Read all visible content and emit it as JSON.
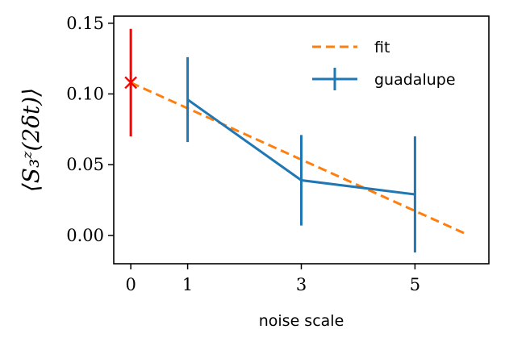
{
  "chart_data": {
    "type": "line",
    "title": "",
    "xlabel": "noise scale",
    "ylabel": "⟨S₃ᶻ(2δt)⟩",
    "xlim": [
      -0.3,
      6.3
    ],
    "ylim": [
      -0.02,
      0.155
    ],
    "x_ticks": [
      0,
      1,
      3,
      5
    ],
    "x_tick_labels": [
      "0",
      "1",
      "3",
      "5"
    ],
    "y_ticks": [
      0.0,
      0.05,
      0.1,
      0.15
    ],
    "y_tick_labels": [
      "0.00",
      "0.05",
      "0.10",
      "0.15"
    ],
    "grid": false,
    "legend_position": "top-right",
    "series": [
      {
        "name": "guadalupe",
        "kind": "errorbar-line",
        "color": "#1f77b4",
        "x": [
          1,
          3,
          5
        ],
        "y": [
          0.096,
          0.039,
          0.029
        ],
        "err": [
          0.03,
          0.032,
          0.041
        ]
      },
      {
        "name": "fit",
        "kind": "dashed-line",
        "color": "#ff7f0e",
        "x": [
          0,
          5.9
        ],
        "y": [
          0.108,
          0.001
        ]
      },
      {
        "kind": "errorbar-marker",
        "marker": "x",
        "color": "#ff0000",
        "x": [
          0
        ],
        "y": [
          0.108
        ],
        "err": [
          0.038
        ]
      }
    ]
  }
}
